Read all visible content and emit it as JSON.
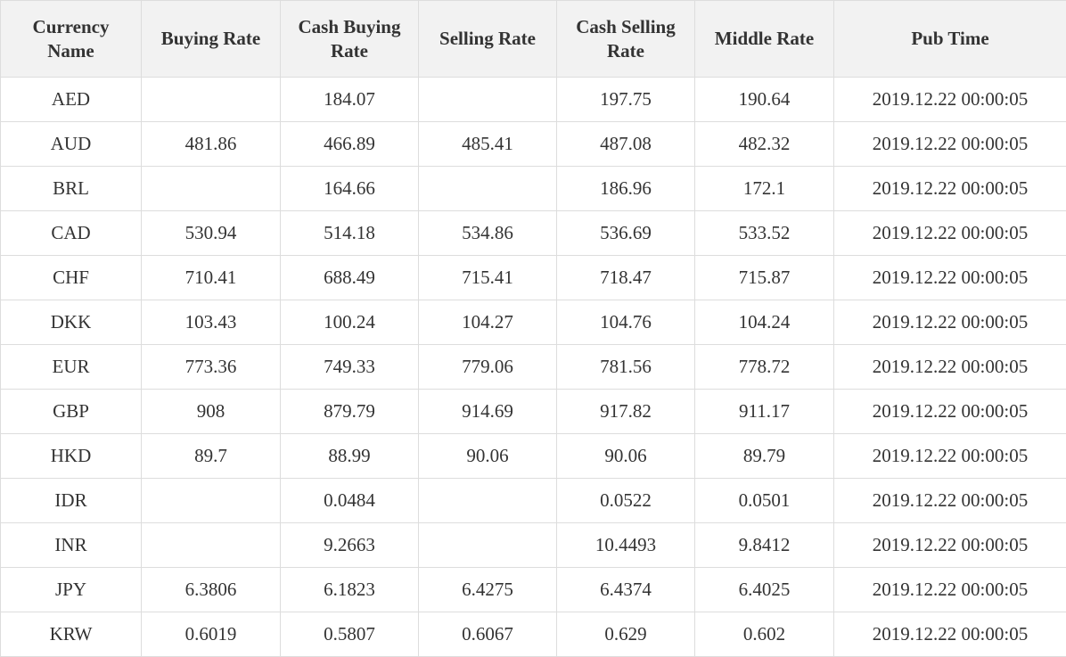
{
  "table": {
    "headers": [
      "Currency Name",
      "Buying Rate",
      "Cash Buying Rate",
      "Selling Rate",
      "Cash Selling Rate",
      "Middle Rate",
      "Pub Time"
    ],
    "rows": [
      {
        "currency": "AED",
        "buying": "",
        "cash_buying": "184.07",
        "selling": "",
        "cash_selling": "197.75",
        "middle": "190.64",
        "pub_time": "2019.12.22 00:00:05"
      },
      {
        "currency": "AUD",
        "buying": "481.86",
        "cash_buying": "466.89",
        "selling": "485.41",
        "cash_selling": "487.08",
        "middle": "482.32",
        "pub_time": "2019.12.22 00:00:05"
      },
      {
        "currency": "BRL",
        "buying": "",
        "cash_buying": "164.66",
        "selling": "",
        "cash_selling": "186.96",
        "middle": "172.1",
        "pub_time": "2019.12.22 00:00:05"
      },
      {
        "currency": "CAD",
        "buying": "530.94",
        "cash_buying": "514.18",
        "selling": "534.86",
        "cash_selling": "536.69",
        "middle": "533.52",
        "pub_time": "2019.12.22 00:00:05"
      },
      {
        "currency": "CHF",
        "buying": "710.41",
        "cash_buying": "688.49",
        "selling": "715.41",
        "cash_selling": "718.47",
        "middle": "715.87",
        "pub_time": "2019.12.22 00:00:05"
      },
      {
        "currency": "DKK",
        "buying": "103.43",
        "cash_buying": "100.24",
        "selling": "104.27",
        "cash_selling": "104.76",
        "middle": "104.24",
        "pub_time": "2019.12.22 00:00:05"
      },
      {
        "currency": "EUR",
        "buying": "773.36",
        "cash_buying": "749.33",
        "selling": "779.06",
        "cash_selling": "781.56",
        "middle": "778.72",
        "pub_time": "2019.12.22 00:00:05"
      },
      {
        "currency": "GBP",
        "buying": "908",
        "cash_buying": "879.79",
        "selling": "914.69",
        "cash_selling": "917.82",
        "middle": "911.17",
        "pub_time": "2019.12.22 00:00:05"
      },
      {
        "currency": "HKD",
        "buying": "89.7",
        "cash_buying": "88.99",
        "selling": "90.06",
        "cash_selling": "90.06",
        "middle": "89.79",
        "pub_time": "2019.12.22 00:00:05"
      },
      {
        "currency": "IDR",
        "buying": "",
        "cash_buying": "0.0484",
        "selling": "",
        "cash_selling": "0.0522",
        "middle": "0.0501",
        "pub_time": "2019.12.22 00:00:05"
      },
      {
        "currency": "INR",
        "buying": "",
        "cash_buying": "9.2663",
        "selling": "",
        "cash_selling": "10.4493",
        "middle": "9.8412",
        "pub_time": "2019.12.22 00:00:05"
      },
      {
        "currency": "JPY",
        "buying": "6.3806",
        "cash_buying": "6.1823",
        "selling": "6.4275",
        "cash_selling": "6.4374",
        "middle": "6.4025",
        "pub_time": "2019.12.22 00:00:05"
      },
      {
        "currency": "KRW",
        "buying": "0.6019",
        "cash_buying": "0.5807",
        "selling": "0.6067",
        "cash_selling": "0.629",
        "middle": "0.602",
        "pub_time": "2019.12.22 00:00:05"
      }
    ]
  }
}
